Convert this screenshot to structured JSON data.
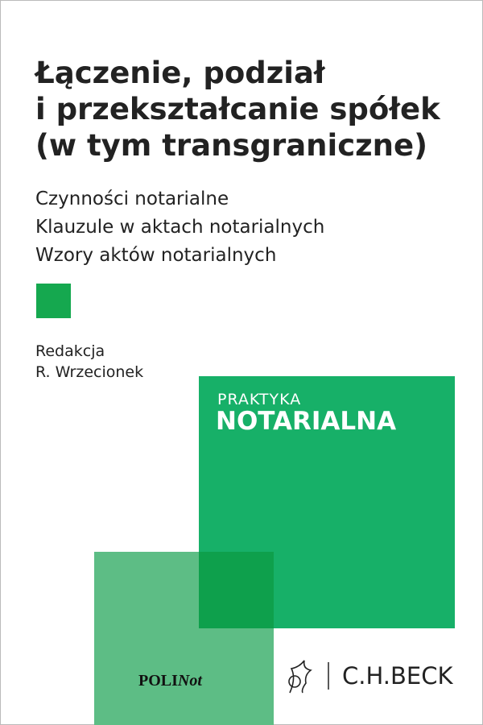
{
  "cover": {
    "title": [
      "Łączenie, podział",
      "i przekształcanie spółek",
      "(w tym transgraniczne)"
    ],
    "subtitle": [
      "Czynności notarialne",
      "Klauzule w aktach notarialnych",
      "Wzory aktów notarialnych"
    ],
    "editor_label": "Redakcja",
    "editor": "R. Wrzecionek",
    "series": {
      "top": "PRAKTYKA",
      "bottom": "NOTARIALNA"
    },
    "imprint": {
      "bold": "POLI",
      "regular": "Not"
    },
    "publisher": "C.H.BECK"
  }
}
